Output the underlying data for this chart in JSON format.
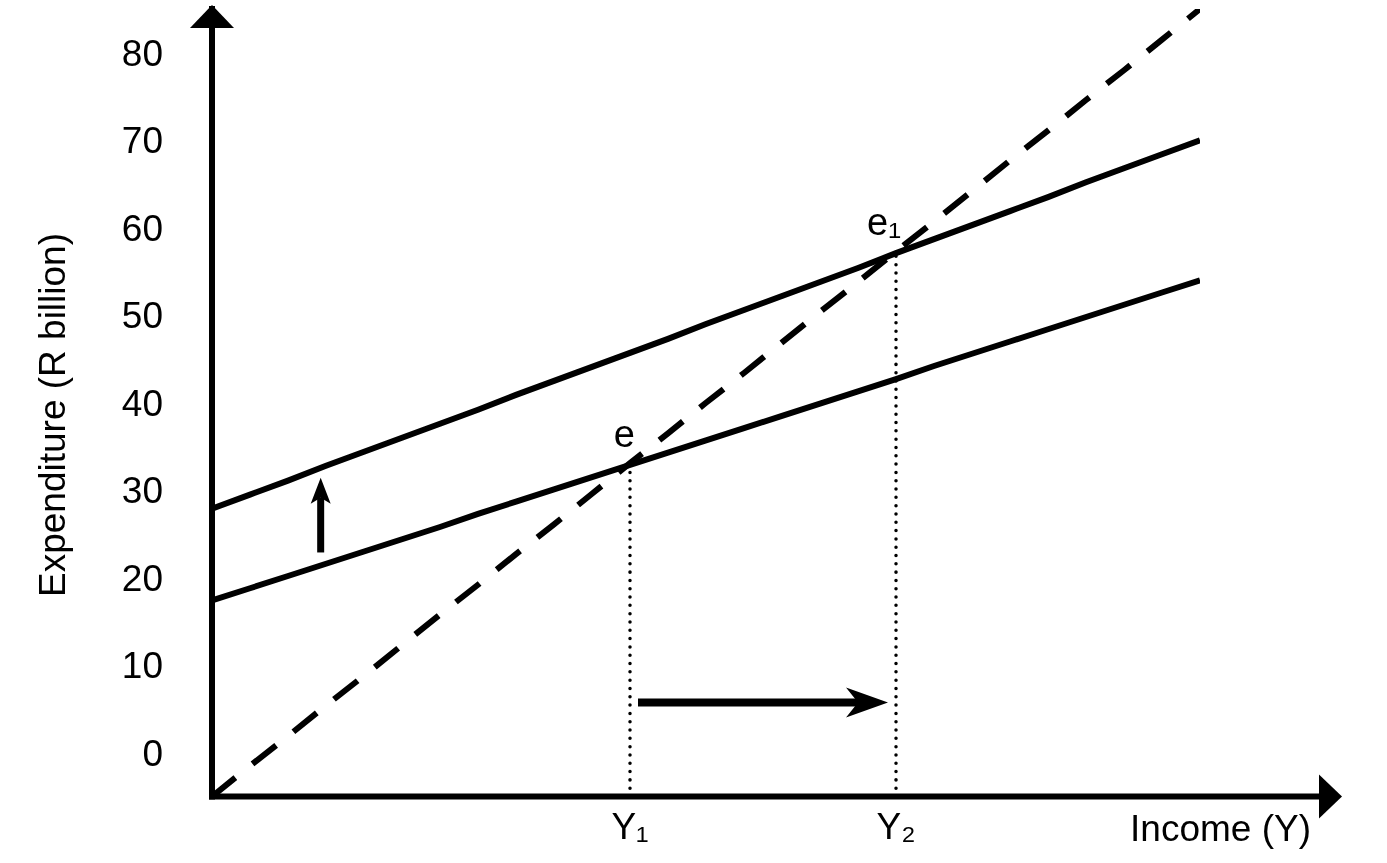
{
  "chart_data": {
    "type": "line",
    "xlabel": "Income (Y)",
    "ylabel": "Expenditure (R billion)",
    "categories": [
      null,
      null,
      null,
      null,
      null,
      null,
      null,
      null,
      null,
      null,
      null,
      "Y₁",
      null,
      null,
      null,
      null,
      null,
      null,
      "Y₂",
      null,
      null,
      null,
      null,
      null,
      null,
      null,
      null
    ],
    "ylim": [
      -5,
      85
    ],
    "yticks": [
      0,
      10,
      20,
      30,
      40,
      50,
      60,
      70,
      80
    ],
    "line_style": "solid",
    "marker": "none",
    "series": [
      {
        "color": "#000000",
        "values": [
          17.4,
          18.8,
          20.2,
          21.6,
          23.0,
          24.4,
          25.8,
          27.3,
          28.7,
          30.1,
          31.5,
          32.9,
          34.3,
          35.7,
          37.1,
          38.5,
          39.9,
          41.3,
          42.7,
          44.2,
          45.6,
          47.0,
          48.4,
          49.8,
          51.2,
          52.6,
          54.0
        ]
      },
      {
        "color": "#000000",
        "values": [
          27.9,
          29.5,
          31.1,
          32.8,
          34.4,
          36.0,
          37.6,
          39.2,
          40.9,
          42.5,
          44.1,
          45.7,
          47.3,
          49.0,
          50.6,
          52.2,
          53.8,
          55.4,
          57.1,
          58.7,
          60.3,
          61.9,
          63.5,
          65.2,
          66.8,
          68.4,
          70.0
        ]
      },
      {
        "color": "#000000",
        "line_style": "dashed",
        "values": [
          -5,
          -1.5,
          1.9,
          5.4,
          8.8,
          12.3,
          15.8,
          19.2,
          22.7,
          26.1,
          29.6,
          33.1,
          36.5,
          40.0,
          43.4,
          46.9,
          50.4,
          53.8,
          57.3,
          60.7,
          64.2,
          67.7,
          71.1,
          74.6,
          78.0,
          81.5,
          85.0
        ]
      }
    ],
    "ref_lines": [
      {
        "axis": "x",
        "value": "Y₁",
        "color": "#000000",
        "line_style": "dotted"
      },
      {
        "axis": "x",
        "value": "Y₂",
        "color": "#000000",
        "line_style": "dotted"
      }
    ],
    "annotations": [
      {
        "text": "e",
        "x": "Y₁",
        "y": 33
      },
      {
        "text": "e₁",
        "x": "Y₂",
        "y": 57.2
      }
    ]
  }
}
